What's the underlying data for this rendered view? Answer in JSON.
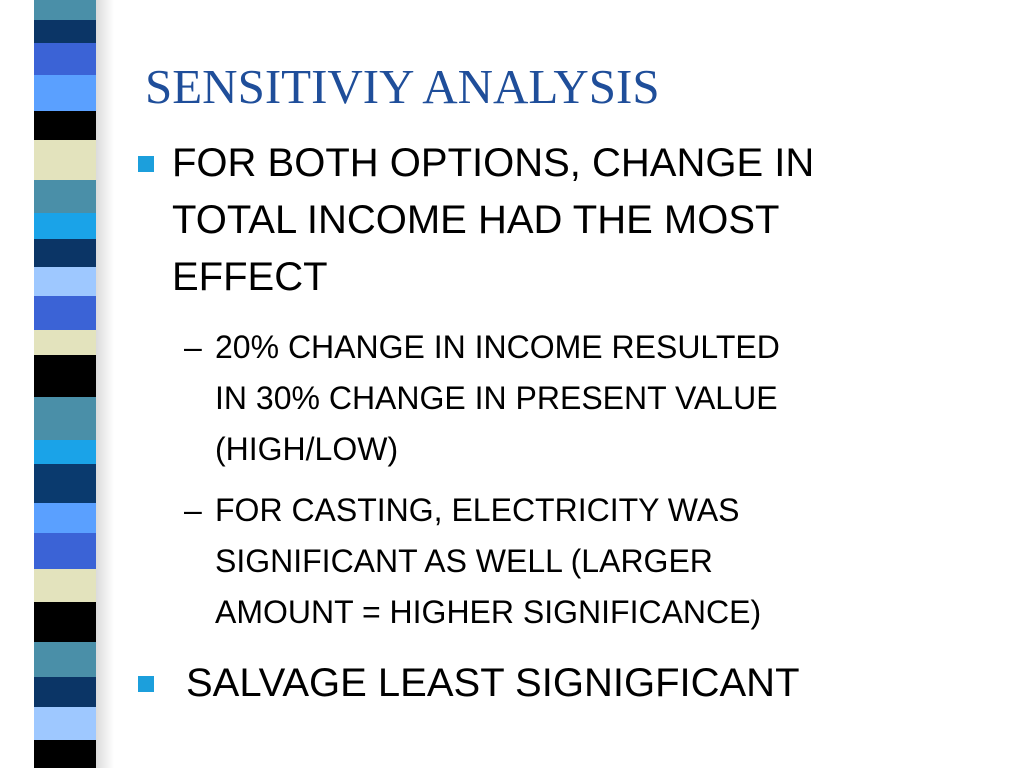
{
  "slide": {
    "title": "SENSITIVIY ANALYSIS",
    "bullets": [
      {
        "lines": [
          "FOR BOTH OPTIONS, CHANGE IN",
          "TOTAL INCOME HAD THE MOST",
          "EFFECT"
        ],
        "subbullets": [
          {
            "marker": "–",
            "lines": [
              "20% CHANGE IN INCOME RESULTED",
              "IN 30% CHANGE IN PRESENT VALUE",
              "(HIGH/LOW)"
            ]
          },
          {
            "marker": "–",
            "lines": [
              "FOR CASTING, ELECTRICITY WAS",
              "SIGNIFICANT AS WELL (LARGER",
              "AMOUNT = HIGHER SIGNIFICANCE)"
            ]
          }
        ]
      },
      {
        "lines": [
          " SALVAGE LEAST SIGNIGFICANT"
        ]
      }
    ]
  },
  "colors": {
    "title": "#1f4e9a",
    "bullet": "#1c9fdc",
    "text": "#000000",
    "stripe": [
      "#4a8fa8",
      "#0b3566",
      "#000000",
      "#5aa0ff",
      "#3b63d6",
      "#e3e3bd",
      "#0a3a6e",
      "#9ec8ff",
      "#1aa3e8"
    ]
  }
}
